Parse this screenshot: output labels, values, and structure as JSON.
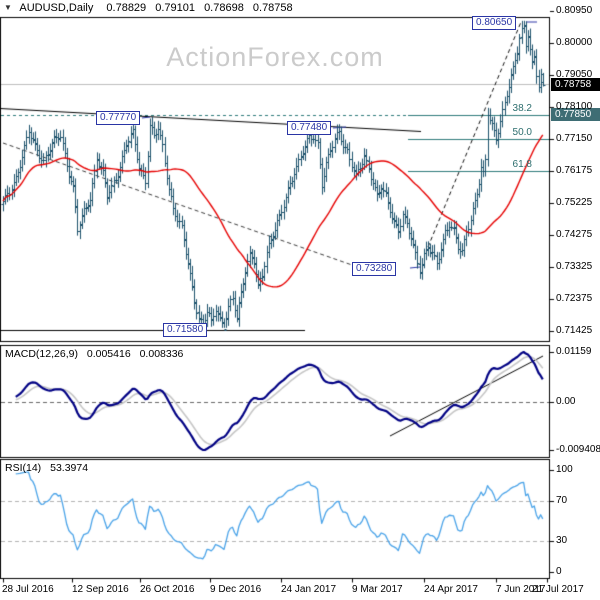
{
  "info": {
    "symbol": "AUDUSD,Daily",
    "open": "0.78829",
    "high": "0.79101",
    "low": "0.78698",
    "close": "0.78758"
  },
  "watermark": "ActionForex.com",
  "main_panel": {
    "y_axis_labels": [
      "0.80950",
      "0.80000",
      "0.79050",
      "0.78100",
      "0.77150",
      "0.76175",
      "0.75225",
      "0.74275",
      "0.73325",
      "0.72375",
      "0.71425"
    ],
    "current_price_tag": "0.78758",
    "fib_tag": "0.77850",
    "fib_labels": [
      "38.2",
      "50.0",
      "61.8"
    ],
    "annotations": [
      "0.80650",
      "0.77770",
      "0.77480",
      "0.73280",
      "0.71580"
    ]
  },
  "macd_panel": {
    "title": "MACD(12,26,9)",
    "value1": "0.005416",
    "value2": "0.008336",
    "y_axis_labels": [
      "0.01159",
      "0.00",
      "-0.009408"
    ]
  },
  "rsi_panel": {
    "title": "RSI(14)",
    "value": "53.3974",
    "y_axis_labels": [
      "100",
      "70",
      "30",
      "0"
    ]
  },
  "x_axis": {
    "dates": [
      "28 Jul 2016",
      "12 Sep 2016",
      "26 Oct 2016",
      "9 Dec 2016",
      "24 Jan 2017",
      "9 Mar 2017",
      "24 Apr 2017",
      "7 Jun 2017",
      "21 Jul 2017"
    ]
  },
  "colors": {
    "bar": "#1b506b",
    "ma_red": "#e60000",
    "teal_line": "#2c7a7a",
    "teal_tag_bg": "#3e6d74",
    "annotation_navy": "#2a35a5",
    "macd_line": "#000083",
    "macd_signal": "#c6c6c6",
    "rsi_line": "#4aa3e8",
    "current_price_line": "#bdbdbd",
    "current_tag_bg": "#000000"
  },
  "chart_data": {
    "type": "bar",
    "subtype": "ohlc-bars-with-indicator-panels",
    "symbol": "AUDUSD",
    "timeframe": "Daily",
    "last_ohlc": {
      "open": 0.78829,
      "high": 0.79101,
      "low": 0.78698,
      "close": 0.78758
    },
    "y_ticks": [
      0.8095,
      0.8,
      0.7905,
      0.781,
      0.7715,
      0.76175,
      0.75225,
      0.74275,
      0.73325,
      0.72375,
      0.71425
    ],
    "x_tick_dates": [
      "28 Jul 2016",
      "12 Sep 2016",
      "26 Oct 2016",
      "9 Dec 2016",
      "24 Jan 2017",
      "9 Mar 2017",
      "24 Apr 2017",
      "7 Jun 2017",
      "21 Jul 2017"
    ],
    "bars_total": 255,
    "close_keyframes": [
      [
        0,
        0.7525
      ],
      [
        3,
        0.7555
      ],
      [
        6,
        0.76
      ],
      [
        9,
        0.7665
      ],
      [
        12,
        0.7735
      ],
      [
        15,
        0.769
      ],
      [
        19,
        0.765
      ],
      [
        23,
        0.77
      ],
      [
        27,
        0.7725
      ],
      [
        30,
        0.764
      ],
      [
        33,
        0.757
      ],
      [
        35,
        0.7445
      ],
      [
        38,
        0.7495
      ],
      [
        41,
        0.754
      ],
      [
        44,
        0.766
      ],
      [
        47,
        0.761
      ],
      [
        49,
        0.7545
      ],
      [
        51,
        0.757
      ],
      [
        54,
        0.7615
      ],
      [
        58,
        0.77
      ],
      [
        61,
        0.773
      ],
      [
        64,
        0.763
      ],
      [
        67,
        0.7595
      ],
      [
        69,
        0.7755
      ],
      [
        71,
        0.772
      ],
      [
        73,
        0.7745
      ],
      [
        75,
        0.769
      ],
      [
        78,
        0.757
      ],
      [
        80,
        0.751
      ],
      [
        82,
        0.7475
      ],
      [
        84,
        0.7445
      ],
      [
        86,
        0.738
      ],
      [
        88,
        0.731
      ],
      [
        90,
        0.724
      ],
      [
        92,
        0.718
      ],
      [
        94,
        0.716
      ],
      [
        96,
        0.72
      ],
      [
        98,
        0.717
      ],
      [
        100,
        0.7215
      ],
      [
        102,
        0.718
      ],
      [
        104,
        0.716
      ],
      [
        106,
        0.721
      ],
      [
        108,
        0.724
      ],
      [
        110,
        0.718
      ],
      [
        112,
        0.726
      ],
      [
        114,
        0.733
      ],
      [
        116,
        0.737
      ],
      [
        118,
        0.735
      ],
      [
        120,
        0.727
      ],
      [
        122,
        0.731
      ],
      [
        124,
        0.738
      ],
      [
        126,
        0.742
      ],
      [
        128,
        0.745
      ],
      [
        131,
        0.7495
      ],
      [
        134,
        0.756
      ],
      [
        137,
        0.762
      ],
      [
        140,
        0.7665
      ],
      [
        142,
        0.769
      ],
      [
        144,
        0.7715
      ],
      [
        146,
        0.772
      ],
      [
        148,
        0.77
      ],
      [
        150,
        0.7585
      ],
      [
        152,
        0.764
      ],
      [
        154,
        0.768
      ],
      [
        156,
        0.771
      ],
      [
        158,
        0.7735
      ],
      [
        160,
        0.77
      ],
      [
        162,
        0.768
      ],
      [
        164,
        0.764
      ],
      [
        166,
        0.76
      ],
      [
        168,
        0.763
      ],
      [
        170,
        0.766
      ],
      [
        172,
        0.763
      ],
      [
        174,
        0.759
      ],
      [
        176,
        0.7545
      ],
      [
        178,
        0.757
      ],
      [
        180,
        0.754
      ],
      [
        182,
        0.7505
      ],
      [
        184,
        0.747
      ],
      [
        186,
        0.7445
      ],
      [
        188,
        0.749
      ],
      [
        190,
        0.7455
      ],
      [
        192,
        0.742
      ],
      [
        194,
        0.737
      ],
      [
        196,
        0.733
      ],
      [
        198,
        0.737
      ],
      [
        200,
        0.7395
      ],
      [
        202,
        0.737
      ],
      [
        204,
        0.734
      ],
      [
        206,
        0.739
      ],
      [
        208,
        0.744
      ],
      [
        210,
        0.7465
      ],
      [
        212,
        0.744
      ],
      [
        214,
        0.739
      ],
      [
        216,
        0.7375
      ],
      [
        218,
        0.744
      ],
      [
        220,
        0.748
      ],
      [
        222,
        0.753
      ],
      [
        224,
        0.7585
      ],
      [
        225,
        0.7625
      ],
      [
        226,
        0.7605
      ],
      [
        227,
        0.765
      ],
      [
        228,
        0.779
      ],
      [
        230,
        0.7755
      ],
      [
        232,
        0.772
      ],
      [
        234,
        0.777
      ],
      [
        236,
        0.782
      ],
      [
        238,
        0.787
      ],
      [
        240,
        0.792
      ],
      [
        242,
        0.798
      ],
      [
        243,
        0.802
      ],
      [
        244,
        0.804
      ],
      [
        245,
        0.805
      ],
      [
        246,
        0.8
      ],
      [
        247,
        0.8025
      ],
      [
        248,
        0.7975
      ],
      [
        249,
        0.793
      ],
      [
        250,
        0.7955
      ],
      [
        251,
        0.7905
      ],
      [
        252,
        0.787
      ],
      [
        253,
        0.79
      ],
      [
        254,
        0.78758
      ]
    ],
    "annotation_levels": {
      "peak_high": 0.8065,
      "trendline_left": 0.7777,
      "trendline_right": 0.7748,
      "swing_low": 0.7328,
      "support_low": 0.7158
    },
    "fib_retracement": {
      "38.2": 0.7785,
      "50.0": 0.7715,
      "61.8": 0.76175
    },
    "moving_average": {
      "type": "SMA",
      "period": 45
    },
    "macd": {
      "params": [
        12,
        26,
        9
      ],
      "range_labels": [
        -0.009408,
        0.01159
      ],
      "last_values": [
        0.005416,
        0.008336
      ],
      "zero_line": 0
    },
    "rsi": {
      "period": 14,
      "last_value": 53.3974,
      "levels": [
        30,
        70
      ],
      "range": [
        0,
        100
      ]
    }
  }
}
